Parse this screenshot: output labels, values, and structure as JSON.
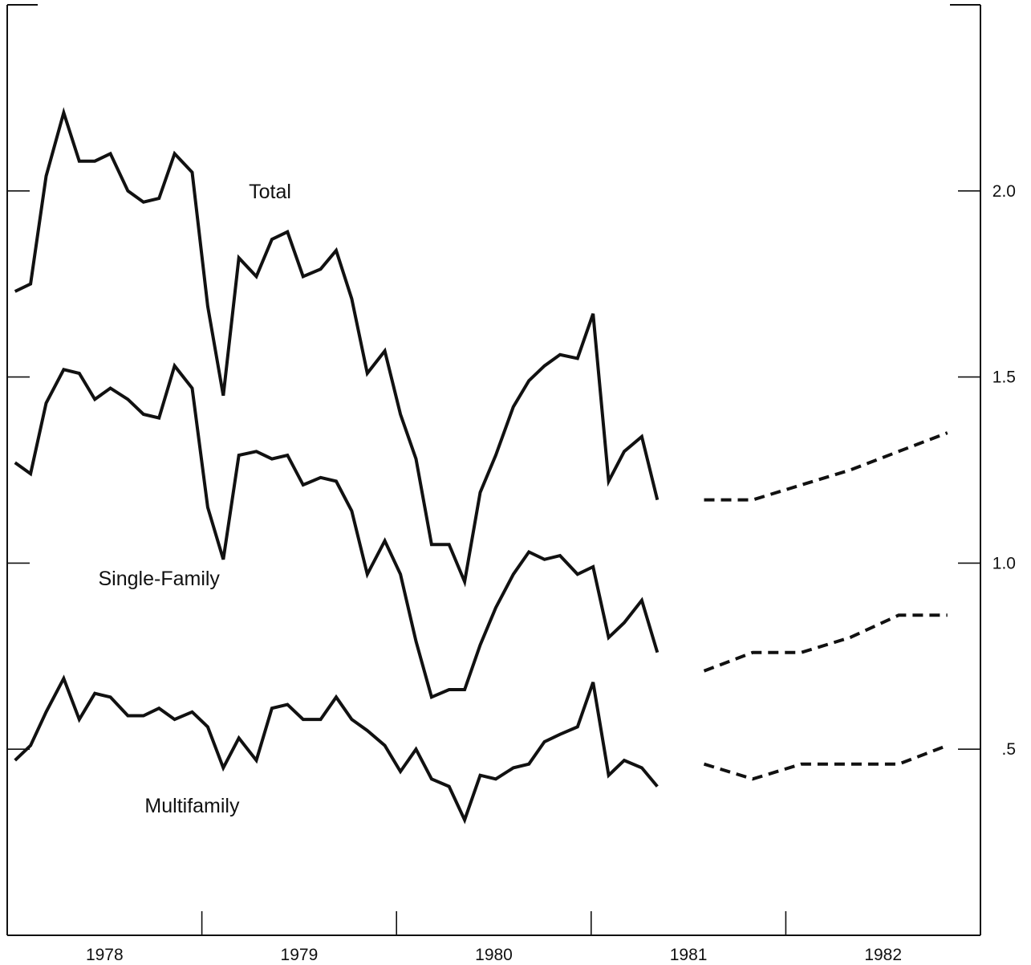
{
  "chart_data": {
    "type": "line",
    "title": "",
    "xlabel": "",
    "ylabel": "",
    "x_ticks": [
      "1978",
      "1979",
      "1980",
      "1981",
      "1982"
    ],
    "y_ticks": [
      {
        "value": 0.5,
        "label": ".5"
      },
      {
        "value": 1.0,
        "label": "1.0"
      },
      {
        "value": 1.5,
        "label": "1.5"
      },
      {
        "value": 2.0,
        "label": "2.0"
      }
    ],
    "xlim": [
      1978.0,
      1983.0
    ],
    "ylim": [
      0.0,
      2.5
    ],
    "grid": false,
    "series": [
      {
        "name": "Total",
        "values": [
          [
            1978.04,
            1.73
          ],
          [
            1978.12,
            1.75
          ],
          [
            1978.2,
            2.04
          ],
          [
            1978.29,
            2.21
          ],
          [
            1978.37,
            2.08
          ],
          [
            1978.45,
            2.08
          ],
          [
            1978.53,
            2.1
          ],
          [
            1978.62,
            2.0
          ],
          [
            1978.7,
            1.97
          ],
          [
            1978.78,
            1.98
          ],
          [
            1978.86,
            2.1
          ],
          [
            1978.95,
            2.05
          ],
          [
            1979.03,
            1.69
          ],
          [
            1979.11,
            1.45
          ],
          [
            1979.19,
            1.82
          ],
          [
            1979.28,
            1.77
          ],
          [
            1979.36,
            1.87
          ],
          [
            1979.44,
            1.89
          ],
          [
            1979.52,
            1.77
          ],
          [
            1979.61,
            1.79
          ],
          [
            1979.69,
            1.84
          ],
          [
            1979.77,
            1.71
          ],
          [
            1979.85,
            1.51
          ],
          [
            1979.94,
            1.57
          ],
          [
            1980.02,
            1.4
          ],
          [
            1980.1,
            1.28
          ],
          [
            1980.18,
            1.05
          ],
          [
            1980.27,
            1.05
          ],
          [
            1980.35,
            0.95
          ],
          [
            1980.43,
            1.19
          ],
          [
            1980.51,
            1.29
          ],
          [
            1980.6,
            1.42
          ],
          [
            1980.68,
            1.49
          ],
          [
            1980.76,
            1.53
          ],
          [
            1980.84,
            1.56
          ],
          [
            1980.93,
            1.55
          ],
          [
            1981.01,
            1.67
          ],
          [
            1981.09,
            1.22
          ],
          [
            1981.17,
            1.3
          ],
          [
            1981.26,
            1.34
          ],
          [
            1981.34,
            1.17
          ]
        ],
        "forecast": [
          [
            1981.58,
            1.17
          ],
          [
            1981.83,
            1.17
          ],
          [
            1982.08,
            1.21
          ],
          [
            1982.33,
            1.25
          ],
          [
            1982.58,
            1.3
          ],
          [
            1982.83,
            1.35
          ]
        ]
      },
      {
        "name": "Single-Family",
        "values": [
          [
            1978.04,
            1.27
          ],
          [
            1978.12,
            1.24
          ],
          [
            1978.2,
            1.43
          ],
          [
            1978.29,
            1.52
          ],
          [
            1978.37,
            1.51
          ],
          [
            1978.45,
            1.44
          ],
          [
            1978.53,
            1.47
          ],
          [
            1978.62,
            1.44
          ],
          [
            1978.7,
            1.4
          ],
          [
            1978.78,
            1.39
          ],
          [
            1978.86,
            1.53
          ],
          [
            1978.95,
            1.47
          ],
          [
            1979.03,
            1.15
          ],
          [
            1979.11,
            1.01
          ],
          [
            1979.19,
            1.29
          ],
          [
            1979.28,
            1.3
          ],
          [
            1979.36,
            1.28
          ],
          [
            1979.44,
            1.29
          ],
          [
            1979.52,
            1.21
          ],
          [
            1979.61,
            1.23
          ],
          [
            1979.69,
            1.22
          ],
          [
            1979.77,
            1.14
          ],
          [
            1979.85,
            0.97
          ],
          [
            1979.94,
            1.06
          ],
          [
            1980.02,
            0.97
          ],
          [
            1980.1,
            0.79
          ],
          [
            1980.18,
            0.64
          ],
          [
            1980.27,
            0.66
          ],
          [
            1980.35,
            0.66
          ],
          [
            1980.43,
            0.78
          ],
          [
            1980.51,
            0.88
          ],
          [
            1980.6,
            0.97
          ],
          [
            1980.68,
            1.03
          ],
          [
            1980.76,
            1.01
          ],
          [
            1980.84,
            1.02
          ],
          [
            1980.93,
            0.97
          ],
          [
            1981.01,
            0.99
          ],
          [
            1981.09,
            0.8
          ],
          [
            1981.17,
            0.84
          ],
          [
            1981.26,
            0.9
          ],
          [
            1981.34,
            0.76
          ]
        ],
        "forecast": [
          [
            1981.58,
            0.71
          ],
          [
            1981.83,
            0.76
          ],
          [
            1982.08,
            0.76
          ],
          [
            1982.33,
            0.8
          ],
          [
            1982.58,
            0.86
          ],
          [
            1982.83,
            0.86
          ]
        ]
      },
      {
        "name": "Multifamily",
        "values": [
          [
            1978.04,
            0.47
          ],
          [
            1978.12,
            0.51
          ],
          [
            1978.2,
            0.6
          ],
          [
            1978.29,
            0.69
          ],
          [
            1978.37,
            0.58
          ],
          [
            1978.45,
            0.65
          ],
          [
            1978.53,
            0.64
          ],
          [
            1978.62,
            0.59
          ],
          [
            1978.7,
            0.59
          ],
          [
            1978.78,
            0.61
          ],
          [
            1978.86,
            0.58
          ],
          [
            1978.95,
            0.6
          ],
          [
            1979.03,
            0.56
          ],
          [
            1979.11,
            0.45
          ],
          [
            1979.19,
            0.53
          ],
          [
            1979.28,
            0.47
          ],
          [
            1979.36,
            0.61
          ],
          [
            1979.44,
            0.62
          ],
          [
            1979.52,
            0.58
          ],
          [
            1979.61,
            0.58
          ],
          [
            1979.69,
            0.64
          ],
          [
            1979.77,
            0.58
          ],
          [
            1979.85,
            0.55
          ],
          [
            1979.94,
            0.51
          ],
          [
            1980.02,
            0.44
          ],
          [
            1980.1,
            0.5
          ],
          [
            1980.18,
            0.42
          ],
          [
            1980.27,
            0.4
          ],
          [
            1980.35,
            0.31
          ],
          [
            1980.43,
            0.43
          ],
          [
            1980.51,
            0.42
          ],
          [
            1980.6,
            0.45
          ],
          [
            1980.68,
            0.46
          ],
          [
            1980.76,
            0.52
          ],
          [
            1980.84,
            0.54
          ],
          [
            1980.93,
            0.56
          ],
          [
            1981.01,
            0.68
          ],
          [
            1981.09,
            0.43
          ],
          [
            1981.17,
            0.47
          ],
          [
            1981.26,
            0.45
          ],
          [
            1981.34,
            0.4
          ]
        ],
        "forecast": [
          [
            1981.58,
            0.46
          ],
          [
            1981.83,
            0.42
          ],
          [
            1982.08,
            0.46
          ],
          [
            1982.33,
            0.46
          ],
          [
            1982.58,
            0.46
          ],
          [
            1982.83,
            0.51
          ]
        ]
      }
    ]
  }
}
